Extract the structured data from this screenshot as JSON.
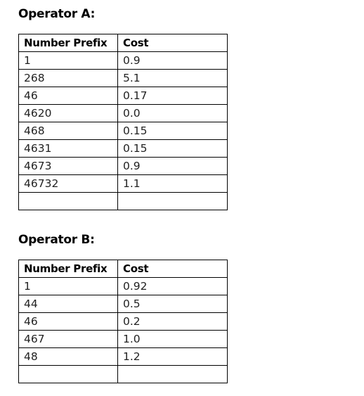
{
  "operator_a": {
    "title": "Operator A:",
    "headers": [
      "Number Prefix",
      "Cost"
    ],
    "rows": [
      [
        "1",
        "0.9"
      ],
      [
        "268",
        "5.1"
      ],
      [
        "46",
        "0.17"
      ],
      [
        "4620",
        "0.0"
      ],
      [
        "468",
        "0.15"
      ],
      [
        "4631",
        "0.15"
      ],
      [
        "4673",
        "0.9"
      ],
      [
        "46732",
        "1.1"
      ],
      [
        "",
        ""
      ]
    ]
  },
  "operator_b": {
    "title": "Operator B:",
    "headers": [
      "Number Prefix",
      "Cost"
    ],
    "rows": [
      [
        "1",
        "0.92"
      ],
      [
        "44",
        "0.5"
      ],
      [
        "46",
        "0.2"
      ],
      [
        "467",
        "1.0"
      ],
      [
        "48",
        "1.2"
      ],
      [
        "",
        ""
      ]
    ]
  }
}
